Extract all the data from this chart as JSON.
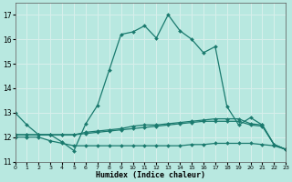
{
  "xlabel": "Humidex (Indice chaleur)",
  "xlim": [
    0,
    23
  ],
  "ylim": [
    11,
    17.5
  ],
  "yticks": [
    11,
    12,
    13,
    14,
    15,
    16,
    17
  ],
  "xticks": [
    0,
    1,
    2,
    3,
    4,
    5,
    6,
    7,
    8,
    9,
    10,
    11,
    12,
    13,
    14,
    15,
    16,
    17,
    18,
    19,
    20,
    21,
    22,
    23
  ],
  "bg_color": "#b8e8e0",
  "grid_color": "#d8f0ec",
  "line_color": "#1a7a6e",
  "lines": [
    {
      "x": [
        0,
        1,
        2,
        3,
        4,
        5,
        6,
        7,
        8,
        9,
        10,
        11,
        12,
        13,
        14,
        15,
        16,
        17,
        18,
        19,
        20,
        21,
        22,
        23
      ],
      "y": [
        13.0,
        12.5,
        12.1,
        12.1,
        11.8,
        11.45,
        12.55,
        13.3,
        14.75,
        16.2,
        16.3,
        16.55,
        16.05,
        17.0,
        16.35,
        16.0,
        15.45,
        15.7,
        13.25,
        12.5,
        12.8,
        12.5,
        11.7,
        11.5
      ]
    },
    {
      "x": [
        0,
        1,
        2,
        3,
        4,
        5,
        6,
        7,
        8,
        9,
        10,
        11,
        12,
        13,
        14,
        15,
        16,
        17,
        18,
        19,
        20,
        21,
        22,
        23
      ],
      "y": [
        12.1,
        12.1,
        12.1,
        12.1,
        12.1,
        12.1,
        12.15,
        12.2,
        12.25,
        12.3,
        12.35,
        12.4,
        12.45,
        12.5,
        12.55,
        12.6,
        12.65,
        12.65,
        12.65,
        12.65,
        12.5,
        12.45,
        11.7,
        11.5
      ]
    },
    {
      "x": [
        0,
        1,
        2,
        3,
        4,
        5,
        6,
        7,
        8,
        9,
        10,
        11,
        12,
        13,
        14,
        15,
        16,
        17,
        18,
        19,
        20,
        21,
        22,
        23
      ],
      "y": [
        12.0,
        12.0,
        12.0,
        11.85,
        11.75,
        11.65,
        11.65,
        11.65,
        11.65,
        11.65,
        11.65,
        11.65,
        11.65,
        11.65,
        11.65,
        11.7,
        11.7,
        11.75,
        11.75,
        11.75,
        11.75,
        11.7,
        11.65,
        11.5
      ]
    },
    {
      "x": [
        0,
        1,
        2,
        3,
        4,
        5,
        6,
        7,
        8,
        9,
        10,
        11,
        12,
        13,
        14,
        15,
        16,
        17,
        18,
        19,
        20,
        21,
        22,
        23
      ],
      "y": [
        12.1,
        12.1,
        12.1,
        12.1,
        12.1,
        12.1,
        12.2,
        12.25,
        12.3,
        12.35,
        12.45,
        12.5,
        12.5,
        12.55,
        12.6,
        12.65,
        12.7,
        12.75,
        12.75,
        12.75,
        12.55,
        12.5,
        11.7,
        11.5
      ]
    }
  ]
}
